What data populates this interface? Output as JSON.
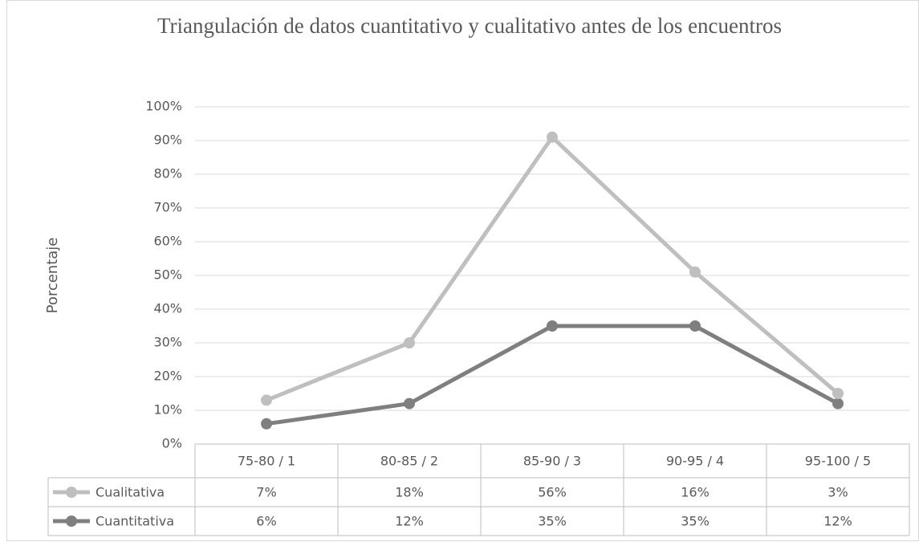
{
  "chart_data": {
    "type": "line",
    "stacked": true,
    "title": "Triangulación de datos cuantitativo y cualitativo antes de los encuentros",
    "y_label": "Porcentaje",
    "categories": [
      "75-80 / 1",
      "80-85 / 2",
      "85-90 / 3",
      "90-95 / 4",
      "95-100 / 5"
    ],
    "series": [
      {
        "name": "Cualitativa",
        "color": "#bfbfbf",
        "values": [
          7,
          18,
          56,
          16,
          3
        ],
        "value_labels": [
          "7%",
          "18%",
          "56%",
          "16%",
          "3%"
        ]
      },
      {
        "name": "Cuantitativa",
        "color": "#7f7f7f",
        "values": [
          6,
          12,
          35,
          35,
          12
        ],
        "value_labels": [
          "6%",
          "12%",
          "35%",
          "35%",
          "12%"
        ]
      }
    ],
    "ylim": [
      0,
      100
    ],
    "yticks": [
      {
        "value": 0,
        "label": "0%"
      },
      {
        "value": 10,
        "label": "10%"
      },
      {
        "value": 20,
        "label": "20%"
      },
      {
        "value": 30,
        "label": "30%"
      },
      {
        "value": 40,
        "label": "40%"
      },
      {
        "value": 50,
        "label": "50%"
      },
      {
        "value": 60,
        "label": "60%"
      },
      {
        "value": 70,
        "label": "70%"
      },
      {
        "value": 80,
        "label": "80%"
      },
      {
        "value": 90,
        "label": "90%"
      },
      {
        "value": 100,
        "label": "100%"
      }
    ],
    "grid": true
  }
}
